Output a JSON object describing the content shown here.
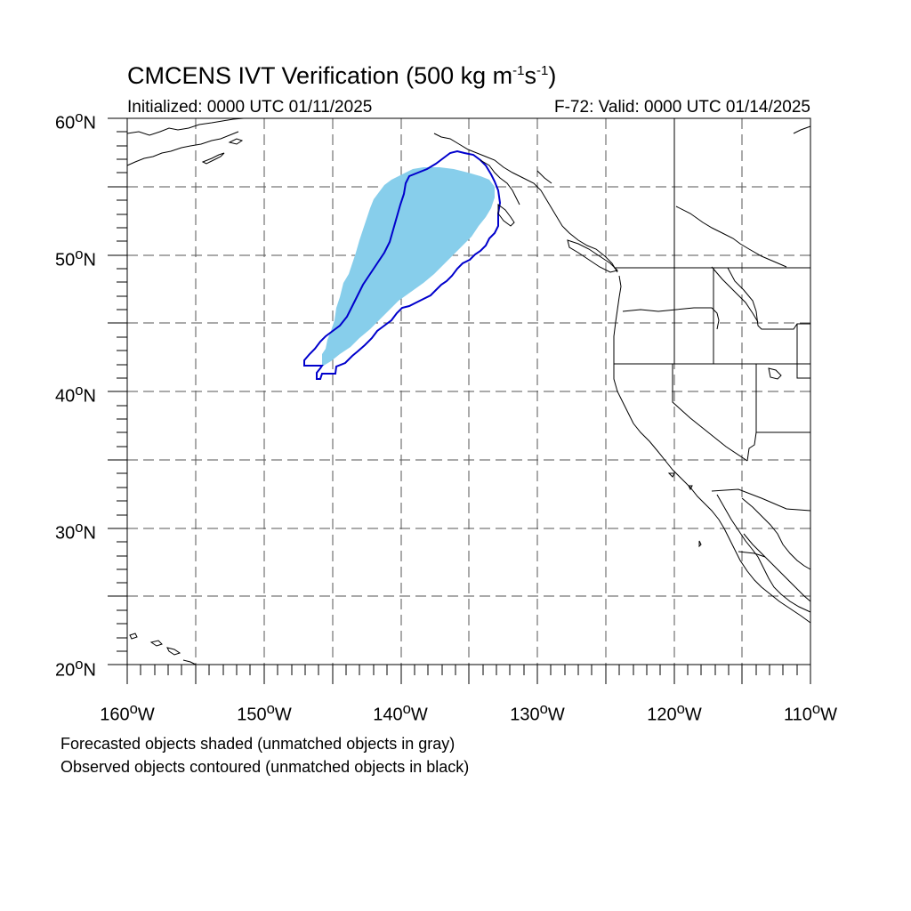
{
  "title": "CMCENS IVT Verification (500 kg m",
  "title_sup1": "-1",
  "title_mid": "s",
  "title_sup2": "-1",
  "title_end": ")",
  "initialized": "Initialized: 0000 UTC 01/11/2025",
  "valid": "F-72: Valid: 0000 UTC 01/14/2025",
  "lat_labels": [
    "60",
    "50",
    "40",
    "30",
    "20"
  ],
  "lon_labels": [
    "160",
    "150",
    "140",
    "130",
    "120",
    "110"
  ],
  "lat_suffix": "N",
  "lon_suffix": "W",
  "notes": [
    "Forecasted objects shaded (unmatched objects in gray)",
    "Observed objects contoured (unmatched objects in black)"
  ],
  "colors": {
    "forecast_fill": "#87ceeb",
    "observed_contour": "#0000cc",
    "coastline": "#000000",
    "grid": "#555555"
  }
}
